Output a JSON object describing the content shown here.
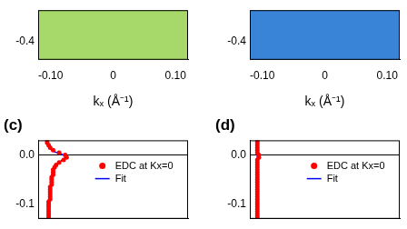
{
  "chart_data": [
    {
      "type": "heatmap",
      "color": "#a6d96a",
      "xlabel": "kₓ (Å⁻¹)",
      "xlim": [
        -0.12,
        0.12
      ],
      "xticks": [
        {
          "value": -0.1,
          "label": "-0.10"
        },
        0,
        {
          "value": 0.1,
          "label": "0.10"
        }
      ],
      "ylim": [
        -0.46,
        -0.3
      ],
      "yticks": [
        -0.4
      ]
    },
    {
      "type": "heatmap",
      "color": "#3a84d8",
      "xlabel": "kₓ (Å⁻¹)",
      "xlim": [
        -0.12,
        0.12
      ],
      "xticks": [
        {
          "value": -0.1,
          "label": "-0.10"
        },
        0,
        {
          "value": 0.1,
          "label": "0.10"
        }
      ],
      "ylim": [
        -0.46,
        -0.3
      ],
      "yticks": [
        -0.4
      ]
    },
    {
      "type": "scatter",
      "title": "(c)",
      "xlim": [
        0,
        1
      ],
      "ylim": [
        -0.13,
        0.03
      ],
      "yticks": [
        {
          "value": 0,
          "label": "0.0"
        },
        -0.1
      ],
      "tick_labels": "y",
      "legend": "right",
      "series": [
        {
          "name": "EDC at Kx=0",
          "color": "#ff0000",
          "marker": "circle",
          "x": [
            0.06,
            0.06,
            0.07,
            0.08,
            0.1,
            0.14,
            0.18,
            0.19,
            0.17,
            0.14,
            0.12,
            0.11,
            0.1,
            0.1,
            0.1,
            0.09,
            0.09,
            0.09,
            0.09,
            0.08,
            0.08,
            0.08,
            0.08,
            0.08,
            0.08,
            0.07,
            0.07,
            0.07,
            0.07,
            0.07,
            0.07,
            0.07,
            0.07
          ],
          "values": [
            0.03,
            0.025,
            0.02,
            0.015,
            0.01,
            0.005,
            0,
            -0.005,
            -0.01,
            -0.015,
            -0.02,
            -0.025,
            -0.03,
            -0.035,
            -0.04,
            -0.045,
            -0.05,
            -0.055,
            -0.06,
            -0.065,
            -0.07,
            -0.075,
            -0.08,
            -0.085,
            -0.09,
            -0.095,
            -0.1,
            -0.105,
            -0.11,
            -0.115,
            -0.12,
            -0.125,
            -0.13
          ]
        },
        {
          "name": "Fit",
          "color": "#0000ff",
          "type": "line",
          "x": [
            0.055,
            0.09,
            0.17,
            0.18,
            0.16,
            0.1,
            0.085,
            0.07
          ],
          "values": [
            0.03,
            0.01,
            0,
            -0.005,
            -0.01,
            -0.03,
            -0.06,
            -0.13
          ]
        }
      ]
    },
    {
      "type": "scatter",
      "title": "(d)",
      "xlim": [
        0,
        1
      ],
      "ylim": [
        -0.13,
        0.03
      ],
      "yticks": [
        {
          "value": 0,
          "label": "0.0"
        },
        -0.1
      ],
      "tick_labels": "y",
      "legend": "right",
      "series": [
        {
          "name": "EDC at Kx=0",
          "color": "#ff0000",
          "marker": "circle",
          "x": [
            0.05,
            0.05,
            0.05,
            0.05,
            0.05,
            0.05,
            0.06,
            0.06,
            0.05,
            0.05,
            0.05,
            0.05,
            0.05,
            0.05,
            0.05,
            0.05,
            0.05,
            0.05,
            0.05,
            0.05,
            0.05,
            0.05,
            0.05,
            0.05,
            0.05,
            0.05,
            0.05,
            0.05,
            0.05,
            0.05,
            0.05,
            0.05,
            0.05
          ],
          "values": [
            0.03,
            0.025,
            0.02,
            0.015,
            0.01,
            0.005,
            0,
            -0.005,
            -0.01,
            -0.015,
            -0.02,
            -0.025,
            -0.03,
            -0.035,
            -0.04,
            -0.045,
            -0.05,
            -0.055,
            -0.06,
            -0.065,
            -0.07,
            -0.075,
            -0.08,
            -0.085,
            -0.09,
            -0.095,
            -0.1,
            -0.105,
            -0.11,
            -0.115,
            -0.12,
            -0.125,
            -0.13
          ]
        },
        {
          "name": "Fit",
          "color": "#0000ff",
          "type": "line",
          "x": [
            0.05,
            0.05
          ],
          "values": [
            0.03,
            -0.13
          ]
        }
      ]
    }
  ]
}
